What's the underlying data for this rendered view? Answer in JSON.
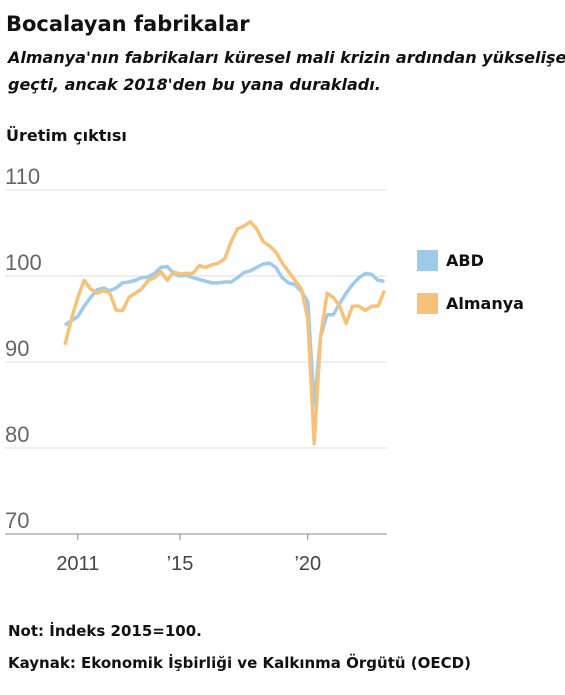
{
  "chart_data": {
    "type": "line",
    "title": "Bocalayan fabrikalar",
    "subtitle": [
      "Almanya'nın fabrikaları küresel mali krizin ardından yükselişe",
      "geçti, ancak 2018'den bu yana durakladı."
    ],
    "y_label": "Üretim çıktısı",
    "x": [
      2010.5,
      2010.75,
      2011,
      2011.25,
      2011.5,
      2011.75,
      2012,
      2012.25,
      2012.5,
      2012.75,
      2013,
      2013.25,
      2013.5,
      2013.75,
      2014,
      2014.25,
      2014.5,
      2014.75,
      2015,
      2015.25,
      2015.5,
      2015.75,
      2016,
      2016.25,
      2016.5,
      2016.75,
      2017,
      2017.25,
      2017.5,
      2017.75,
      2018,
      2018.25,
      2018.5,
      2018.75,
      2019,
      2019.25,
      2019.5,
      2019.75,
      2020,
      2020.25,
      2020.5,
      2020.75,
      2021,
      2021.25,
      2021.5,
      2021.75,
      2022,
      2022.25,
      2022.5,
      2022.75,
      2023
    ],
    "series": [
      {
        "name": "ABD",
        "color": "#9ecbe9",
        "values": [
          94.3,
          94.8,
          95.3,
          96.5,
          97.5,
          98.4,
          98.6,
          98.3,
          98.6,
          99.2,
          99.3,
          99.5,
          99.8,
          99.9,
          100.3,
          101,
          101.1,
          100.3,
          100,
          100.1,
          99.8,
          99.6,
          99.4,
          99.2,
          99.2,
          99.3,
          99.3,
          99.8,
          100.4,
          100.6,
          101,
          101.4,
          101.5,
          101,
          99.8,
          99.2,
          99,
          98.2,
          97,
          85,
          93,
          95.5,
          95.5,
          96.8,
          98,
          99,
          99.8,
          100.3,
          100.2,
          99.5,
          99.4
        ]
      },
      {
        "name": "Almanya",
        "color": "#f6c27a",
        "values": [
          92,
          95,
          97.5,
          99.5,
          98.5,
          98,
          98.3,
          98,
          96,
          96,
          97.5,
          98,
          98.5,
          99.5,
          99.8,
          100.5,
          99.5,
          100.5,
          100.2,
          100.3,
          100.3,
          101.2,
          101,
          101.3,
          101.5,
          102,
          104,
          105.5,
          105.8,
          106.3,
          105.5,
          104,
          103.5,
          102.8,
          101.5,
          100.5,
          99.5,
          98.5,
          95,
          80.5,
          93,
          98,
          97.5,
          96.5,
          94.5,
          96.5,
          96.5,
          96,
          96.5,
          96.5,
          98.3
        ]
      }
    ],
    "xlim": [
      2008.15,
      2023.1
    ],
    "xticks": [
      {
        "value": 2011,
        "label": "2011"
      },
      {
        "value": 2015,
        "label": "’15"
      },
      {
        "value": 2020,
        "label": "’20"
      }
    ],
    "ylim": [
      70,
      110
    ],
    "yticks": [
      70,
      80,
      90,
      100,
      110
    ],
    "grid": true,
    "legend": "right",
    "notes": [
      "Not: İndeks 2015=100.",
      "Kaynak: Ekonomik İşbirliği ve Kalkınma Örgütü (OECD)"
    ]
  }
}
